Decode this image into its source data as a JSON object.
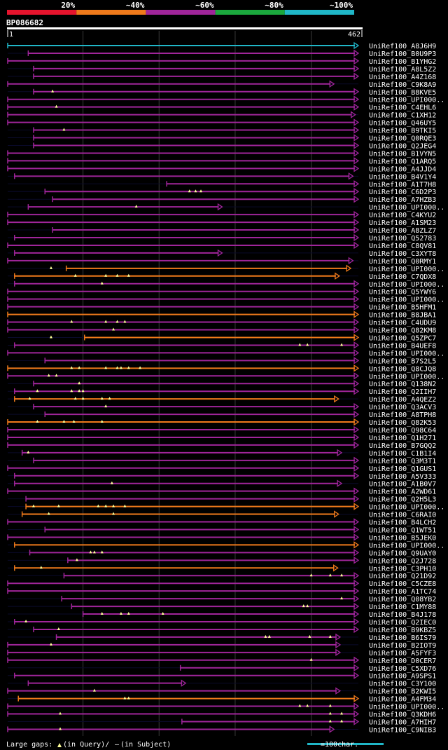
{
  "chart_data": {
    "type": "alignment",
    "query_id": "BP086682",
    "query_length": 462,
    "ruler_start": "1",
    "ruler_end": "462",
    "identity_legend": [
      {
        "label": "20%",
        "color": "#e6142d"
      },
      {
        "label": "~40%",
        "color": "#ef7a1b"
      },
      {
        "label": "~60%",
        "color": "#a0259a"
      },
      {
        "label": "~80%",
        "color": "#1ba83d"
      },
      {
        "label": "~100%",
        "color": "#20b7c8"
      }
    ],
    "hits": [
      {
        "name": "UniRef100_A8J6H9",
        "start": 1,
        "end": 462,
        "color": "#20b7c8",
        "markers": []
      },
      {
        "name": "UniRef100_B0U9P3",
        "start": 28,
        "end": 462,
        "color": "#a0259a",
        "markers": []
      },
      {
        "name": "UniRef100_B1YHG2",
        "start": 1,
        "end": 462,
        "color": "#a0259a",
        "markers": []
      },
      {
        "name": "UniRef100_A8L5Z2",
        "start": 35,
        "end": 462,
        "color": "#a0259a",
        "markers": []
      },
      {
        "name": "UniRef100_A4Z168",
        "start": 35,
        "end": 462,
        "color": "#a0259a",
        "markers": []
      },
      {
        "name": "UniRef100_C9K8A9",
        "start": 1,
        "end": 430,
        "color": "#a0259a",
        "markers": []
      },
      {
        "name": "UniRef100_B8KVE5",
        "start": 35,
        "end": 462,
        "color": "#a0259a",
        "markers": [
          60
        ]
      },
      {
        "name": "UniRef100_UPI000..",
        "start": 1,
        "end": 462,
        "color": "#a0259a",
        "markers": []
      },
      {
        "name": "UniRef100_C4EHL6",
        "start": 1,
        "end": 462,
        "color": "#a0259a",
        "markers": [
          65
        ]
      },
      {
        "name": "UniRef100_C1XH12",
        "start": 1,
        "end": 458,
        "color": "#a0259a",
        "markers": []
      },
      {
        "name": "UniRef100_Q46UY5",
        "start": 1,
        "end": 462,
        "color": "#a0259a",
        "markers": []
      },
      {
        "name": "UniRef100_B9TKI5",
        "start": 35,
        "end": 462,
        "color": "#a0259a",
        "markers": [
          75
        ]
      },
      {
        "name": "UniRef100_Q0RQE3",
        "start": 35,
        "end": 462,
        "color": "#a0259a",
        "markers": []
      },
      {
        "name": "UniRef100_Q2JEG4",
        "start": 35,
        "end": 462,
        "color": "#a0259a",
        "markers": []
      },
      {
        "name": "UniRef100_B1VYN5",
        "start": 1,
        "end": 462,
        "color": "#a0259a",
        "markers": []
      },
      {
        "name": "UniRef100_Q1ARQ5",
        "start": 1,
        "end": 462,
        "color": "#a0259a",
        "markers": []
      },
      {
        "name": "UniRef100_A4JJD4",
        "start": 1,
        "end": 462,
        "color": "#a0259a",
        "markers": []
      },
      {
        "name": "UniRef100_B4V1Y4",
        "start": 10,
        "end": 455,
        "color": "#a0259a",
        "markers": []
      },
      {
        "name": "UniRef100_A1T7H8",
        "start": 210,
        "end": 462,
        "color": "#a0259a",
        "markers": []
      },
      {
        "name": "UniRef100_C6D2P3",
        "start": 50,
        "end": 462,
        "color": "#a0259a",
        "markers": [
          240,
          248,
          255
        ]
      },
      {
        "name": "UniRef100_A7HZB3",
        "start": 60,
        "end": 462,
        "color": "#a0259a",
        "markers": []
      },
      {
        "name": "UniRef100_UPI000..",
        "start": 28,
        "end": 283,
        "color": "#a0259a",
        "markers": [
          170
        ]
      },
      {
        "name": "UniRef100_C4KYU2",
        "start": 1,
        "end": 462,
        "color": "#a0259a",
        "markers": []
      },
      {
        "name": "UniRef100_A1SM23",
        "start": 1,
        "end": 462,
        "color": "#a0259a",
        "markers": []
      },
      {
        "name": "UniRef100_A8ZLZ7",
        "start": 60,
        "end": 462,
        "color": "#a0259a",
        "markers": []
      },
      {
        "name": "UniRef100_Q52783",
        "start": 10,
        "end": 462,
        "color": "#a0259a",
        "markers": []
      },
      {
        "name": "UniRef100_C8QV81",
        "start": 1,
        "end": 462,
        "color": "#a0259a",
        "markers": []
      },
      {
        "name": "UniRef100_C3XYT8",
        "start": 10,
        "end": 283,
        "color": "#a0259a",
        "markers": []
      },
      {
        "name": "UniRef100_Q0RMY1",
        "start": 1,
        "end": 455,
        "color": "#a0259a",
        "markers": []
      },
      {
        "name": "UniRef100_UPI000..",
        "start": 78,
        "end": 452,
        "color": "#ef7a1b",
        "markers": [
          58
        ]
      },
      {
        "name": "UniRef100_C7QDX8",
        "start": 10,
        "end": 437,
        "color": "#ef7a1b",
        "markers": [
          90,
          130,
          145,
          160
        ]
      },
      {
        "name": "UniRef100_UPI000..",
        "start": 10,
        "end": 462,
        "color": "#a0259a",
        "markers": [
          125
        ]
      },
      {
        "name": "UniRef100_Q5YWY6",
        "start": 1,
        "end": 462,
        "color": "#a0259a",
        "markers": []
      },
      {
        "name": "UniRef100_UPI000..",
        "start": 1,
        "end": 462,
        "color": "#a0259a",
        "markers": []
      },
      {
        "name": "UniRef100_B5HFM1",
        "start": 1,
        "end": 462,
        "color": "#a0259a",
        "markers": []
      },
      {
        "name": "UniRef100_B8JBA1",
        "start": 1,
        "end": 462,
        "color": "#ef7a1b",
        "markers": []
      },
      {
        "name": "UniRef100_C4UDU9",
        "start": 1,
        "end": 462,
        "color": "#a0259a",
        "markers": [
          85,
          130,
          145,
          155
        ]
      },
      {
        "name": "UniRef100_Q82KM8",
        "start": 1,
        "end": 462,
        "color": "#a0259a",
        "markers": [
          140
        ]
      },
      {
        "name": "UniRef100_Q5ZPC7",
        "start": 102,
        "end": 462,
        "color": "#ef7a1b",
        "markers": [
          58
        ]
      },
      {
        "name": "UniRef100_B4UEF8",
        "start": 10,
        "end": 462,
        "color": "#a0259a",
        "markers": [
          385,
          395,
          440
        ]
      },
      {
        "name": "UniRef100_UPI000..",
        "start": 1,
        "end": 462,
        "color": "#a0259a",
        "markers": []
      },
      {
        "name": "UniRef100_B7S2L5",
        "start": 50,
        "end": 462,
        "color": "#a0259a",
        "markers": []
      },
      {
        "name": "UniRef100_Q8CJQ8",
        "start": 1,
        "end": 462,
        "color": "#ef7a1b",
        "markers": [
          85,
          95,
          130,
          145,
          150,
          160,
          175
        ]
      },
      {
        "name": "UniRef100_UPI000..",
        "start": 1,
        "end": 462,
        "color": "#a0259a",
        "markers": [
          55,
          65
        ]
      },
      {
        "name": "UniRef100_Q138N2",
        "start": 35,
        "end": 462,
        "color": "#a0259a",
        "markers": [
          95
        ]
      },
      {
        "name": "UniRef100_Q2IIH7",
        "start": 10,
        "end": 462,
        "color": "#a0259a",
        "markers": [
          40,
          85,
          95,
          100
        ]
      },
      {
        "name": "UniRef100_A4QEZ2",
        "start": 10,
        "end": 436,
        "color": "#ef7a1b",
        "markers": [
          30,
          90,
          100,
          125,
          135
        ]
      },
      {
        "name": "UniRef100_Q3ACV3",
        "start": 35,
        "end": 462,
        "color": "#a0259a",
        "markers": [
          130
        ]
      },
      {
        "name": "UniRef100_A8TPH8",
        "start": 50,
        "end": 462,
        "color": "#a0259a",
        "markers": []
      },
      {
        "name": "UniRef100_Q82K53",
        "start": 1,
        "end": 462,
        "color": "#ef7a1b",
        "markers": [
          40,
          75,
          88,
          125
        ]
      },
      {
        "name": "UniRef100_Q98C64",
        "start": 1,
        "end": 462,
        "color": "#a0259a",
        "markers": []
      },
      {
        "name": "UniRef100_Q1H271",
        "start": 1,
        "end": 462,
        "color": "#a0259a",
        "markers": []
      },
      {
        "name": "UniRef100_B7GQQ2",
        "start": 1,
        "end": 462,
        "color": "#a0259a",
        "markers": []
      },
      {
        "name": "UniRef100_C1B1I4",
        "start": 20,
        "end": 440,
        "color": "#a0259a",
        "markers": [
          28
        ]
      },
      {
        "name": "UniRef100_Q3M3T1",
        "start": 35,
        "end": 462,
        "color": "#a0259a",
        "markers": []
      },
      {
        "name": "UniRef100_Q1GUS1",
        "start": 1,
        "end": 462,
        "color": "#a0259a",
        "markers": []
      },
      {
        "name": "UniRef100_A5V333",
        "start": 10,
        "end": 462,
        "color": "#a0259a",
        "markers": []
      },
      {
        "name": "UniRef100_A1B0V7",
        "start": 10,
        "end": 440,
        "color": "#a0259a",
        "markers": [
          138
        ]
      },
      {
        "name": "UniRef100_A2WD61",
        "start": 1,
        "end": 462,
        "color": "#a0259a",
        "markers": []
      },
      {
        "name": "UniRef100_Q2H5L3",
        "start": 25,
        "end": 462,
        "color": "#a0259a",
        "markers": []
      },
      {
        "name": "UniRef100_UPI000..",
        "start": 25,
        "end": 462,
        "color": "#ef7a1b",
        "markers": [
          35,
          68,
          120,
          130,
          140,
          155
        ]
      },
      {
        "name": "UniRef100_C6RAI0",
        "start": 20,
        "end": 436,
        "color": "#ef7a1b",
        "markers": [
          55,
          140
        ]
      },
      {
        "name": "UniRef100_B4LCH2",
        "start": 1,
        "end": 462,
        "color": "#a0259a",
        "markers": []
      },
      {
        "name": "UniRef100_Q1WT51",
        "start": 50,
        "end": 462,
        "color": "#a0259a",
        "markers": []
      },
      {
        "name": "UniRef100_B5JEK0",
        "start": 1,
        "end": 462,
        "color": "#a0259a",
        "markers": []
      },
      {
        "name": "UniRef100_UPI000..",
        "start": 10,
        "end": 462,
        "color": "#ef7a1b",
        "markers": []
      },
      {
        "name": "UniRef100_Q9UAY0",
        "start": 30,
        "end": 462,
        "color": "#a0259a",
        "markers": [
          110,
          115,
          125
        ]
      },
      {
        "name": "UniRef100_Q2J728",
        "start": 80,
        "end": 462,
        "color": "#a0259a",
        "markers": [
          92
        ]
      },
      {
        "name": "UniRef100_C3PH10",
        "start": 10,
        "end": 435,
        "color": "#ef7a1b",
        "markers": [
          45
        ]
      },
      {
        "name": "UniRef100_Q21D92",
        "start": 75,
        "end": 462,
        "color": "#a0259a",
        "markers": [
          400,
          425,
          440
        ]
      },
      {
        "name": "UniRef100_C5CZE8",
        "start": 1,
        "end": 462,
        "color": "#a0259a",
        "markers": []
      },
      {
        "name": "UniRef100_A1TC74",
        "start": 1,
        "end": 462,
        "color": "#a0259a",
        "markers": []
      },
      {
        "name": "UniRef100_Q08YB2",
        "start": 72,
        "end": 462,
        "color": "#a0259a",
        "markers": [
          440
        ]
      },
      {
        "name": "UniRef100_C1MY88",
        "start": 85,
        "end": 462,
        "color": "#a0259a",
        "markers": [
          390,
          395
        ]
      },
      {
        "name": "UniRef100_B4J178",
        "start": 100,
        "end": 462,
        "color": "#a0259a",
        "markers": [
          125,
          150,
          160,
          205
        ]
      },
      {
        "name": "UniRef100_Q2IEC0",
        "start": 10,
        "end": 462,
        "color": "#a0259a",
        "markers": [
          25
        ]
      },
      {
        "name": "UniRef100_B9KBZ5",
        "start": 35,
        "end": 462,
        "color": "#a0259a",
        "markers": [
          68
        ]
      },
      {
        "name": "UniRef100_B6IS79",
        "start": 65,
        "end": 438,
        "color": "#a0259a",
        "markers": [
          340,
          345,
          398,
          425
        ]
      },
      {
        "name": "UniRef100_B2IOT9",
        "start": 1,
        "end": 438,
        "color": "#a0259a",
        "markers": [
          58
        ]
      },
      {
        "name": "UniRef100_A5FYF3",
        "start": 1,
        "end": 438,
        "color": "#a0259a",
        "markers": []
      },
      {
        "name": "UniRef100_D0CER7",
        "start": 1,
        "end": 462,
        "color": "#a0259a",
        "markers": [
          400
        ]
      },
      {
        "name": "UniRef100_C5XD76",
        "start": 228,
        "end": 462,
        "color": "#a0259a",
        "markers": []
      },
      {
        "name": "UniRef100_A9SPS1",
        "start": 10,
        "end": 462,
        "color": "#a0259a",
        "markers": []
      },
      {
        "name": "UniRef100_C3Y100",
        "start": 28,
        "end": 235,
        "color": "#a0259a",
        "markers": []
      },
      {
        "name": "UniRef100_B2KWI5",
        "start": 1,
        "end": 438,
        "color": "#a0259a",
        "markers": [
          115
        ]
      },
      {
        "name": "UniRef100_A4FM34",
        "start": 15,
        "end": 462,
        "color": "#ef7a1b",
        "markers": [
          155,
          160
        ]
      },
      {
        "name": "UniRef100_UPI000..",
        "start": 1,
        "end": 462,
        "color": "#a0259a",
        "markers": [
          385,
          395,
          425
        ]
      },
      {
        "name": "UniRef100_Q3KDH6",
        "start": 1,
        "end": 462,
        "color": "#a0259a",
        "markers": [
          70,
          425,
          440
        ]
      },
      {
        "name": "UniRef100_A7HIH7",
        "start": 230,
        "end": 462,
        "color": "#a0259a",
        "markers": [
          425,
          440
        ]
      },
      {
        "name": "UniRef100_C9NIB3",
        "start": 1,
        "end": 430,
        "color": "#a0259a",
        "markers": [
          70
        ]
      }
    ],
    "footer_label": "Large gaps:",
    "footer_query": "(in Query)/",
    "footer_subject": "(in Subject)",
    "scale_label": "=100char.",
    "scale_units": 100
  }
}
